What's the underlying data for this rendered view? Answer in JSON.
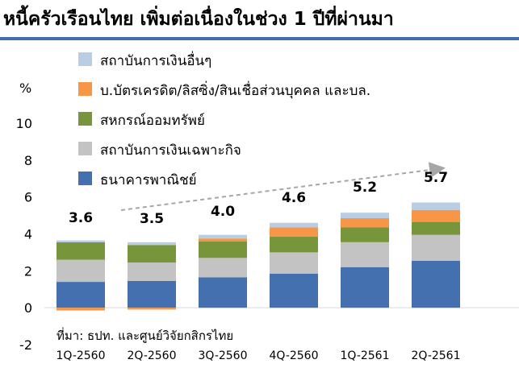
{
  "title": "หนี้ครัวเรือนไทย เพิ่มต่อเนื่องในช่วง 1 ปีที่ผ่านมา",
  "source_note": "ที่มา: ธปท. และศูนย์วิจัยกสิกรไทย",
  "chart_data": {
    "type": "bar",
    "stacked": true,
    "ylabel": "%",
    "ylim": [
      -2,
      10
    ],
    "yticks": [
      -2,
      0,
      2,
      4,
      6,
      8,
      10
    ],
    "grid": false,
    "legend_position": "top-left",
    "categories": [
      "1Q-2560",
      "2Q-2560",
      "3Q-2560",
      "4Q-2560",
      "1Q-2561",
      "2Q-2561"
    ],
    "totals": [
      "3.6",
      "3.5",
      "4.0",
      "4.6",
      "5.2",
      "5.7"
    ],
    "series": [
      {
        "name": "ธนาคารพาณิชย์",
        "color": "#4470b0",
        "values": [
          1.4,
          1.45,
          1.65,
          1.85,
          2.2,
          2.55
        ]
      },
      {
        "name": "สถาบันการเงินเฉพาะกิจ",
        "color": "#c3c3c3",
        "values": [
          1.2,
          1.0,
          1.05,
          1.15,
          1.35,
          1.4
        ]
      },
      {
        "name": "สหกรณ์ออมทรัพย์",
        "color": "#77963b",
        "values": [
          0.95,
          0.95,
          0.9,
          0.85,
          0.8,
          0.7
        ]
      },
      {
        "name": "บ.บัตรเครดิต/ลิสซิ่ง/สินเชื่อส่วนบุคคล และบล.",
        "color": "#f79646",
        "values": [
          -0.15,
          -0.1,
          0.15,
          0.5,
          0.5,
          0.65
        ]
      },
      {
        "name": "สถาบันการเงินอื่นๆ",
        "color": "#b9cde5",
        "values": [
          0.1,
          0.15,
          0.2,
          0.25,
          0.3,
          0.4
        ]
      }
    ],
    "trend_arrow": true
  }
}
